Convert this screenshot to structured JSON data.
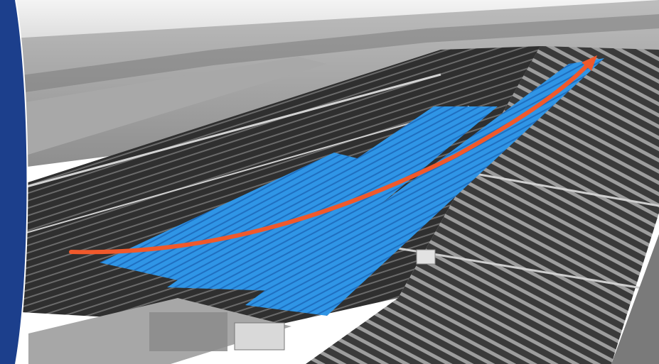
{
  "scene": {
    "subject": "aerial-solar-farm",
    "palette": {
      "sky": "#e9e9e9",
      "field": "#b9b9b9",
      "field_dark": "#8e8e8e",
      "panel": "#3a3a3a",
      "panel_light": "#5a5a5a",
      "highlight": "#2f95e6",
      "highlight_dark": "#1f78c9",
      "arrow": "#f0592b",
      "side_band": "#1c3f8c",
      "substation": "#9a9a9a"
    },
    "icons": [
      "route-arrow-icon"
    ]
  }
}
